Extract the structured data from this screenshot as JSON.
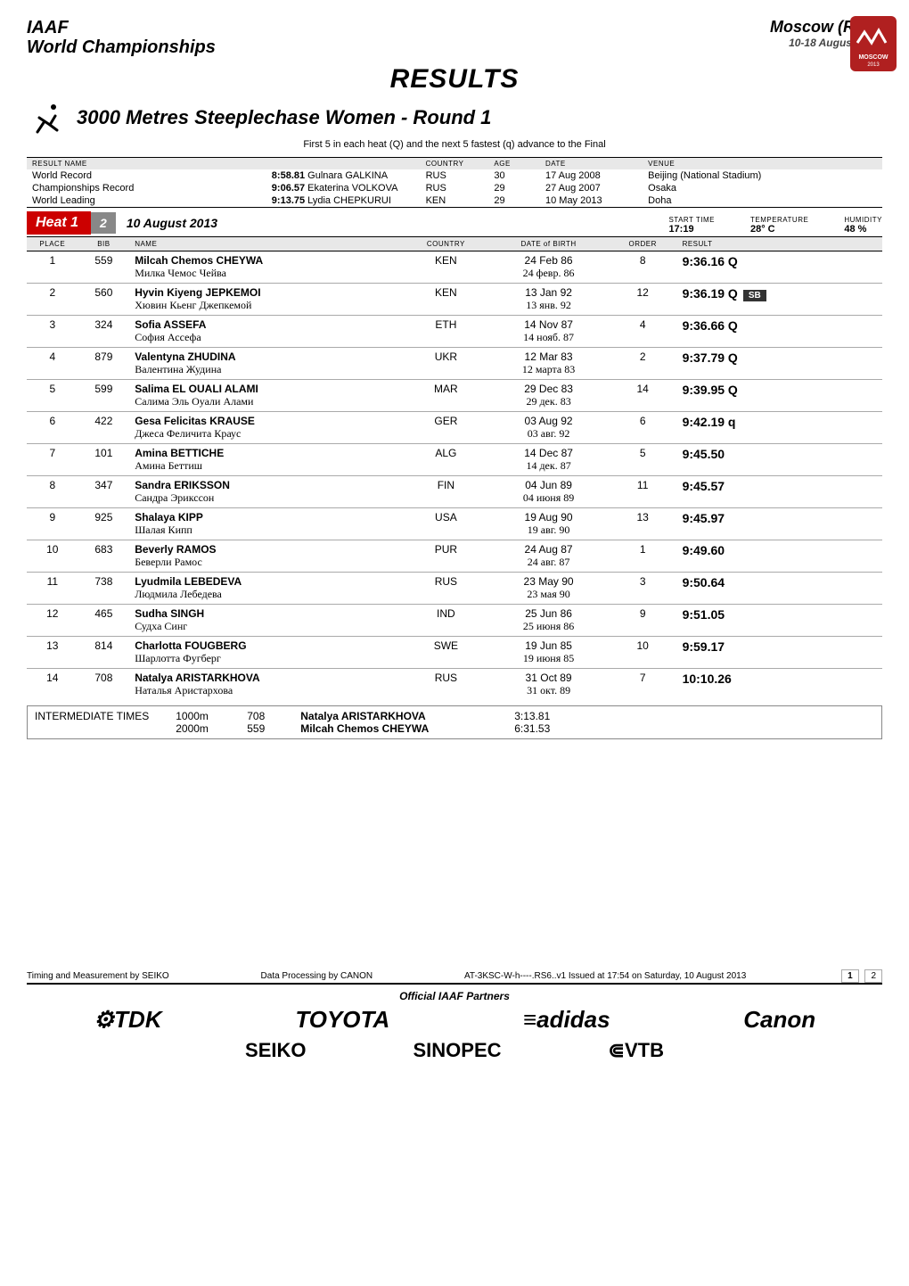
{
  "header": {
    "org_line1": "IAAF",
    "org_line2": "World Championships",
    "city": "Moscow (RUS)",
    "dates": "10-18 August 2013"
  },
  "title": "RESULTS",
  "event_title": "3000 Metres Steeplechase Women - Round 1",
  "advance_rule": "First 5 in each heat (Q) and the next 5 fastest (q) advance to the Final",
  "record_headers": {
    "result_name": "RESULT  NAME",
    "country": "COUNTRY",
    "age": "AGE",
    "date": "DATE",
    "venue": "VENUE"
  },
  "records": [
    {
      "label": "World Record",
      "result": "8:58.81",
      "name": "Gulnara GALKINA",
      "country": "RUS",
      "age": "30",
      "date": "17 Aug 2008",
      "venue": "Beijing (National Stadium)"
    },
    {
      "label": "Championships Record",
      "result": "9:06.57",
      "name": "Ekaterina VOLKOVA",
      "country": "RUS",
      "age": "29",
      "date": "27 Aug 2007",
      "venue": "Osaka"
    },
    {
      "label": "World Leading",
      "result": "9:13.75",
      "name": "Lydia CHEPKURUI",
      "country": "KEN",
      "age": "29",
      "date": "10 May 2013",
      "venue": "Doha"
    }
  ],
  "heat": {
    "label": "Heat 1",
    "number": "2",
    "date": "10 August  2013",
    "start_time_lbl": "START TIME",
    "start_time": "17:19",
    "temp_lbl": "TEMPERATURE",
    "temp": "28° C",
    "hum_lbl": "HUMIDITY",
    "hum": "48 %"
  },
  "table_headers": {
    "place": "PLACE",
    "bib": "BIB",
    "name": "NAME",
    "country": "COUNTRY",
    "dob": "DATE of BIRTH",
    "order": "ORDER",
    "result": "RESULT"
  },
  "rows": [
    {
      "place": "1",
      "bib": "559",
      "name": "Milcah Chemos  CHEYWA",
      "sub": "Милка Чемос Чейва",
      "country": "KEN",
      "dob": "24 Feb 86",
      "dob_sub": "24 февр. 86",
      "order": "8",
      "result": "9:36.16 Q",
      "badge": ""
    },
    {
      "place": "2",
      "bib": "560",
      "name": "Hyvin Kiyeng  JEPKEMOI",
      "sub": "Хювин Кьенг Джепкемой",
      "country": "KEN",
      "dob": "13 Jan 92",
      "dob_sub": "13 янв. 92",
      "order": "12",
      "result": "9:36.19 Q",
      "badge": "SB"
    },
    {
      "place": "3",
      "bib": "324",
      "name": "Sofia  ASSEFA",
      "sub": "София Ассефа",
      "country": "ETH",
      "dob": "14 Nov 87",
      "dob_sub": "14 нояб. 87",
      "order": "4",
      "result": "9:36.66 Q",
      "badge": ""
    },
    {
      "place": "4",
      "bib": "879",
      "name": "Valentyna  ZHUDINA",
      "sub": "Валентина Жудина",
      "country": "UKR",
      "dob": "12 Mar 83",
      "dob_sub": "12 марта 83",
      "order": "2",
      "result": "9:37.79 Q",
      "badge": ""
    },
    {
      "place": "5",
      "bib": "599",
      "name": "Salima  EL OUALI ALAMI",
      "sub": "Салима Эль Оуали Алами",
      "country": "MAR",
      "dob": "29 Dec 83",
      "dob_sub": "29 дек. 83",
      "order": "14",
      "result": "9:39.95 Q",
      "badge": ""
    },
    {
      "place": "6",
      "bib": "422",
      "name": "Gesa Felicitas  KRAUSE",
      "sub": "Джеса Феличита Краус",
      "country": "GER",
      "dob": "03 Aug 92",
      "dob_sub": "03 авг. 92",
      "order": "6",
      "result": "9:42.19 q",
      "badge": ""
    },
    {
      "place": "7",
      "bib": "101",
      "name": "Amina  BETTICHE",
      "sub": "Амина Беттиш",
      "country": "ALG",
      "dob": "14 Dec 87",
      "dob_sub": "14 дек. 87",
      "order": "5",
      "result": "9:45.50",
      "badge": ""
    },
    {
      "place": "8",
      "bib": "347",
      "name": "Sandra  ERIKSSON",
      "sub": "Сандра Эрикссон",
      "country": "FIN",
      "dob": "04 Jun 89",
      "dob_sub": "04 июня 89",
      "order": "11",
      "result": "9:45.57",
      "badge": ""
    },
    {
      "place": "9",
      "bib": "925",
      "name": "Shalaya  KIPP",
      "sub": "Шалая Кипп",
      "country": "USA",
      "dob": "19 Aug 90",
      "dob_sub": "19 авг. 90",
      "order": "13",
      "result": "9:45.97",
      "badge": ""
    },
    {
      "place": "10",
      "bib": "683",
      "name": "Beverly  RAMOS",
      "sub": "Беверли Рамос",
      "country": "PUR",
      "dob": "24 Aug 87",
      "dob_sub": "24 авг. 87",
      "order": "1",
      "result": "9:49.60",
      "badge": ""
    },
    {
      "place": "11",
      "bib": "738",
      "name": "Lyudmila  LEBEDEVA",
      "sub": "Людмила Лебедева",
      "country": "RUS",
      "dob": "23 May 90",
      "dob_sub": "23 мая 90",
      "order": "3",
      "result": "9:50.64",
      "badge": ""
    },
    {
      "place": "12",
      "bib": "465",
      "name": "Sudha  SINGH",
      "sub": "Судха Синг",
      "country": "IND",
      "dob": "25 Jun 86",
      "dob_sub": "25 июня 86",
      "order": "9",
      "result": "9:51.05",
      "badge": ""
    },
    {
      "place": "13",
      "bib": "814",
      "name": "Charlotta  FOUGBERG",
      "sub": "Шарлотта Фугберг",
      "country": "SWE",
      "dob": "19 Jun 85",
      "dob_sub": "19 июня 85",
      "order": "10",
      "result": "9:59.17",
      "badge": ""
    },
    {
      "place": "14",
      "bib": "708",
      "name": "Natalya  ARISTARKHOVA",
      "sub": "Наталья Аристархова",
      "country": "RUS",
      "dob": "31 Oct 89",
      "dob_sub": "31 окт. 89",
      "order": "7",
      "result": "10:10.26",
      "badge": ""
    }
  ],
  "intermediate": {
    "label": "INTERMEDIATE TIMES",
    "splits": [
      {
        "dist": "1000m",
        "bib": "708",
        "name": "Natalya ARISTARKHOVA",
        "time": "3:13.81"
      },
      {
        "dist": "2000m",
        "bib": "559",
        "name": "Milcah Chemos CHEYWA",
        "time": "6:31.53"
      }
    ]
  },
  "footer": {
    "timing": "Timing and Measurement by SEIKO",
    "data": "Data Processing by CANON",
    "code": "AT-3KSC-W-h----.RS6..v1",
    "issued": "Issued at 17:54 on Saturday, 10 August  2013",
    "page_cur": "1",
    "page_total": "2",
    "partners_lbl": "Official IAAF Partners",
    "partners_top": [
      "⚙TDK",
      "TOYOTA",
      "≡adidas",
      "Canon"
    ],
    "partners_bot": [
      "SEIKO",
      "SINOPEC",
      "⋐VTB"
    ]
  },
  "colors": {
    "heat_red": "#c00000",
    "heat_grey": "#808080",
    "th_bg": "#e8e8e8",
    "badge_bg": "#333333"
  }
}
